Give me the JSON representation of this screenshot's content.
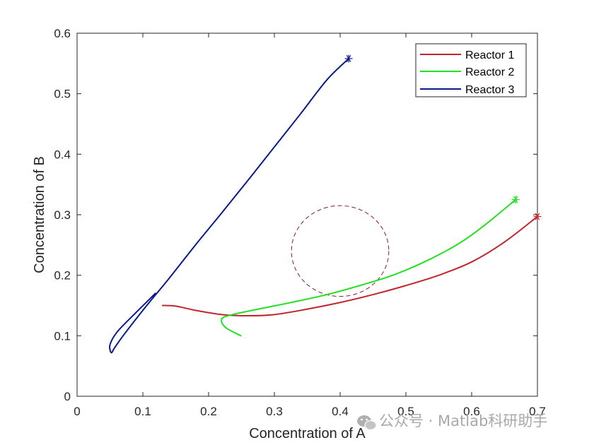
{
  "chart_data": {
    "type": "line",
    "title": "",
    "xlabel": "Concentration of A",
    "ylabel": "Concentration of B",
    "xlim": [
      0,
      0.7
    ],
    "ylim": [
      0,
      0.6
    ],
    "xticks": [
      0,
      0.1,
      0.2,
      0.3,
      0.4,
      0.5,
      0.6,
      0.7
    ],
    "xtick_labels": [
      "0",
      "0.1",
      "0.2",
      "0.3",
      "0.4",
      "0.5",
      "0.6",
      "0.7"
    ],
    "yticks": [
      0,
      0.1,
      0.2,
      0.3,
      0.4,
      0.5,
      0.6
    ],
    "ytick_labels": [
      "0",
      "0.1",
      "0.2",
      "0.3",
      "0.4",
      "0.5",
      "0.6"
    ],
    "grid": false,
    "legend_position": "top-right",
    "series": [
      {
        "name": "Reactor 1",
        "color": "#c0272d",
        "end_marker": "asterisk",
        "x": [
          0.13,
          0.15,
          0.18,
          0.22,
          0.26,
          0.3,
          0.35,
          0.4,
          0.45,
          0.5,
          0.55,
          0.6,
          0.65,
          0.7
        ],
        "y": [
          0.15,
          0.149,
          0.142,
          0.135,
          0.133,
          0.135,
          0.144,
          0.155,
          0.168,
          0.183,
          0.2,
          0.222,
          0.255,
          0.297
        ]
      },
      {
        "name": "Reactor 2",
        "color": "#22e022",
        "end_marker": "asterisk",
        "x": [
          0.249,
          0.228,
          0.22,
          0.222,
          0.24,
          0.28,
          0.33,
          0.38,
          0.43,
          0.48,
          0.53,
          0.58,
          0.62,
          0.667
        ],
        "y": [
          0.1,
          0.112,
          0.122,
          0.13,
          0.136,
          0.145,
          0.156,
          0.168,
          0.183,
          0.2,
          0.223,
          0.252,
          0.283,
          0.325
        ]
      },
      {
        "name": "Reactor 3",
        "color": "#0b1a8a",
        "end_marker": "asterisk",
        "x": [
          0.119,
          0.08,
          0.06,
          0.05,
          0.052,
          0.057,
          0.07,
          0.1,
          0.14,
          0.18,
          0.22,
          0.26,
          0.3,
          0.34,
          0.38,
          0.413
        ],
        "y": [
          0.17,
          0.128,
          0.105,
          0.085,
          0.072,
          0.08,
          0.1,
          0.142,
          0.195,
          0.25,
          0.303,
          0.357,
          0.412,
          0.467,
          0.523,
          0.558
        ]
      }
    ],
    "annotations": [
      {
        "shape": "dashed-circle",
        "color": "#8b1a2b",
        "center": [
          0.4,
          0.24
        ],
        "radius_x": 0.074,
        "radius_y": 0.075
      }
    ]
  },
  "watermark": {
    "text": "公众号 · Matlab科研助手",
    "icon": "wechat-icon"
  }
}
